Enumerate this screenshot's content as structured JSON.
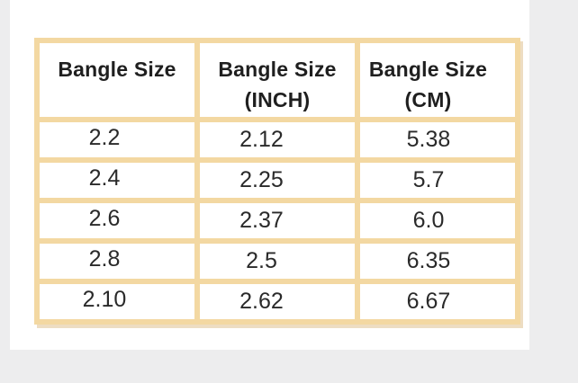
{
  "page": {
    "background_color": "#ededee",
    "card_color": "#ffffff"
  },
  "table": {
    "border_color": "#f3d8a2",
    "text_color": "#2a2a2a",
    "headers": [
      {
        "line1": "Bangle Size",
        "line2": ""
      },
      {
        "line1": "Bangle Size",
        "line2": "(INCH)"
      },
      {
        "line1": "Bangle Size",
        "line2": "(CM)"
      }
    ],
    "rows": [
      [
        "2.2",
        "2.12",
        "5.38"
      ],
      [
        "2.4",
        "2.25",
        "5.7"
      ],
      [
        "2.6",
        "2.37",
        "6.0"
      ],
      [
        "2.8",
        "2.5",
        "6.35"
      ],
      [
        "2.10",
        "2.62",
        "6.67"
      ]
    ]
  },
  "chart_data": {
    "type": "table",
    "columns": [
      "Bangle Size",
      "Bangle Size (INCH)",
      "Bangle Size (CM)"
    ],
    "rows": [
      [
        "2.2",
        "2.12",
        "5.38"
      ],
      [
        "2.4",
        "2.25",
        "5.7"
      ],
      [
        "2.6",
        "2.37",
        "6.0"
      ],
      [
        "2.8",
        "2.5",
        "6.35"
      ],
      [
        "2.10",
        "2.62",
        "6.67"
      ]
    ]
  }
}
